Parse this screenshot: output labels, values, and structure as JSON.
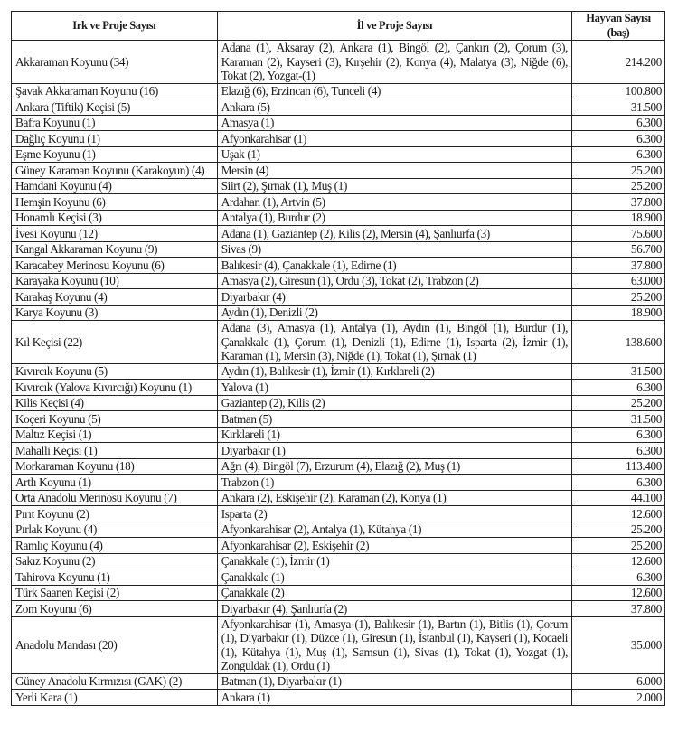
{
  "table": {
    "headers": [
      "Irk ve Proje Sayısı",
      "İl ve Proje Sayısı",
      "Hayvan Sayısı (baş)"
    ],
    "rows": [
      {
        "breed": "Akkaraman Koyunu (34)",
        "provinces": "Adana (1), Aksaray (2), Ankara (1), Bingöl (2), Çankırı (2), Çorum (3), Karaman (2), Kayseri (3), Kırşehir (2), Konya (4), Malatya (3), Niğde (6), Tokat (2), Yozgat-(1)",
        "count": "214.200"
      },
      {
        "breed": "Şavak Akkaraman Koyunu (16)",
        "provinces": "Elazığ (6), Erzincan (6), Tunceli (4)",
        "count": "100.800"
      },
      {
        "breed": "Ankara (Tiftik) Keçisi (5)",
        "provinces": "Ankara (5)",
        "count": "31.500"
      },
      {
        "breed": "Bafra Koyunu (1)",
        "provinces": "Amasya (1)",
        "count": "6.300"
      },
      {
        "breed": "Dağlıç Koyunu (1)",
        "provinces": "Afyonkarahisar (1)",
        "count": "6.300"
      },
      {
        "breed": "Eşme Koyunu (1)",
        "provinces": "Uşak (1)",
        "count": "6.300"
      },
      {
        "breed": "Güney Karaman Koyunu (Karakoyun) (4)",
        "provinces": "Mersin (4)",
        "count": "25.200"
      },
      {
        "breed": "Hamdani Koyunu (4)",
        "provinces": "Siirt (2), Şırnak (1), Muş (1)",
        "count": "25.200"
      },
      {
        "breed": "Hemşin Koyunu (6)",
        "provinces": "Ardahan (1), Artvin (5)",
        "count": "37.800"
      },
      {
        "breed": "Honamlı Keçisi (3)",
        "provinces": "Antalya (1), Burdur (2)",
        "count": "18.900"
      },
      {
        "breed": "İvesi Koyunu (12)",
        "provinces": "Adana (1), Gaziantep (2), Kilis (2), Mersin (4), Şanlıurfa (3)",
        "count": "75.600"
      },
      {
        "breed": "Kangal Akkaraman Koyunu (9)",
        "provinces": "Sivas (9)",
        "count": "56.700"
      },
      {
        "breed": "Karacabey Merinosu Koyunu (6)",
        "provinces": "Balıkesir (4), Çanakkale (1), Edirne (1)",
        "count": "37.800"
      },
      {
        "breed": "Karayaka Koyunu (10)",
        "provinces": "Amasya (2), Giresun (1), Ordu (3), Tokat (2), Trabzon (2)",
        "count": "63.000"
      },
      {
        "breed": "Karakaş Koyunu (4)",
        "provinces": "Diyarbakır (4)",
        "count": "25.200"
      },
      {
        "breed": "Karya Koyunu (3)",
        "provinces": "Aydın (1), Denizli (2)",
        "count": "18.900"
      },
      {
        "breed": "Kıl Keçisi  (22)",
        "provinces": "Adana (3), Amasya (1), Antalya (1), Aydın (1), Bingöl (1), Burdur (1), Çanakkale (1), Çorum (1), Denizli (1), Edirne (1), Isparta (2), İzmir (1), Karaman (1), Mersin (3), Niğde (1), Tokat (1), Şırnak (1)",
        "count": "138.600"
      },
      {
        "breed": "Kıvırcık Koyunu (5)",
        "provinces": "Aydın (1), Balıkesir (1), İzmir (1), Kırklareli (2)",
        "count": "31.500"
      },
      {
        "breed": "Kıvırcık (Yalova Kıvırcığı) Koyunu (1)",
        "provinces": "Yalova (1)",
        "count": "6.300"
      },
      {
        "breed": "Kilis Keçisi (4)",
        "provinces": "Gaziantep (2), Kilis (2)",
        "count": "25.200"
      },
      {
        "breed": "Koçeri Koyunu (5)",
        "provinces": "Batman (5)",
        "count": "31.500"
      },
      {
        "breed": "Maltız Keçisi (1)",
        "provinces": "Kırklareli (1)",
        "count": "6.300"
      },
      {
        "breed": "Mahalli Keçisi (1)",
        "provinces": "Diyarbakır (1)",
        "count": "6.300"
      },
      {
        "breed": "Morkaraman Koyunu (18)",
        "provinces": "Ağrı (4), Bingöl (7), Erzurum (4), Elazığ (2), Muş (1)",
        "count": "113.400"
      },
      {
        "breed": "Artlı Koyunu (1)",
        "provinces": "Trabzon (1)",
        "count": "6.300"
      },
      {
        "breed": "Orta Anadolu Merinosu Koyunu (7)",
        "provinces": "Ankara (2), Eskişehir (2), Karaman (2), Konya (1)",
        "count": "44.100"
      },
      {
        "breed": "Pırıt Koyunu (2)",
        "provinces": "Isparta (2)",
        "count": "12.600"
      },
      {
        "breed": "Pırlak Koyunu (4)",
        "provinces": "Afyonkarahisar (2), Antalya (1), Kütahya (1)",
        "count": "25.200"
      },
      {
        "breed": "Ramlıç Koyunu (4)",
        "provinces": "Afyonkarahisar (2), Eskişehir (2)",
        "count": "25.200"
      },
      {
        "breed": "Sakız Koyunu (2)",
        "provinces": "Çanakkale (1), İzmir (1)",
        "count": "12.600"
      },
      {
        "breed": "Tahirova Koyunu (1)",
        "provinces": "Çanakkale (1)",
        "count": "6.300"
      },
      {
        "breed": "Türk Saanen Keçisi (2)",
        "provinces": "Çanakkale (2)",
        "count": "12.600"
      },
      {
        "breed": "Zom Koyunu (6)",
        "provinces": "Diyarbakır (4), Şanlıurfa (2)",
        "count": "37.800"
      },
      {
        "breed": "Anadolu Mandası (20)",
        "provinces": "Afyonkarahisar (1), Amasya (1), Balıkesir (1), Bartın (1), Bitlis (1), Çorum (1), Diyarbakır (1), Düzce (1), Giresun (1), İstanbul (1), Kayseri (1), Kocaeli (1), Kütahya (1), Muş (1), Samsun (1), Sivas (1), Tokat (1), Yozgat (1), Zonguldak (1), Ordu (1)",
        "count": "35.000"
      },
      {
        "breed": "Güney Anadolu Kırmızısı  (GAK) (2)",
        "provinces": "Batman (1), Diyarbakır (1)",
        "count": "6.000"
      },
      {
        "breed": "Yerli Kara (1)",
        "provinces": "Ankara (1)",
        "count": "2.000"
      }
    ]
  }
}
